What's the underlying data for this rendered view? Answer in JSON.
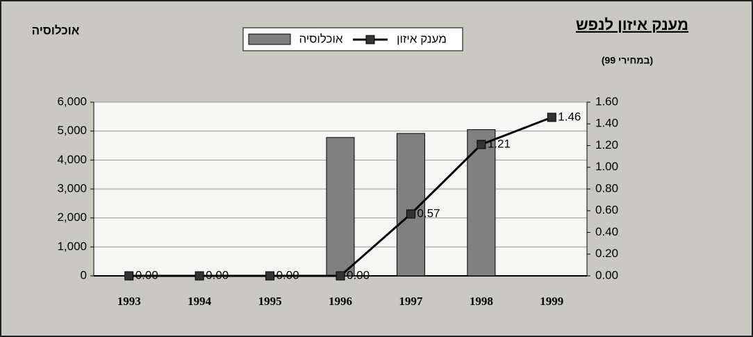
{
  "chart_data": {
    "type": "bar",
    "title": "מענק איזון לנפש",
    "subtitle": "(במחירי 99)",
    "y_label": "אוכלוסיה",
    "categories": [
      "1993",
      "1994",
      "1995",
      "1996",
      "1997",
      "1998",
      "1999"
    ],
    "series": [
      {
        "name": "אוכלוסיה",
        "type": "bar",
        "color": "#808080",
        "values": [
          0,
          0,
          0,
          4780,
          4920,
          5050,
          null
        ]
      },
      {
        "name": "מענק איזון",
        "type": "line",
        "axis": "y2",
        "color": "#000000",
        "values": [
          0,
          0,
          0,
          0,
          0.57,
          1.21,
          1.46
        ],
        "value_labels": [
          "0.00",
          "0.00",
          "0.00",
          "0.00",
          "0.57",
          "1.21",
          "1.46"
        ]
      }
    ],
    "ylim": [
      0,
      6000
    ],
    "yticks": [
      0,
      {
        "value": 1000,
        "label": "1,000"
      },
      {
        "value": 2000,
        "label": "2,000"
      },
      {
        "value": 3000,
        "label": "3,000"
      },
      {
        "value": 4000,
        "label": "4,000"
      },
      {
        "value": 5000,
        "label": "5,000"
      },
      {
        "value": 6000,
        "label": "6,000"
      }
    ],
    "y2lim": [
      0,
      1.6
    ],
    "y2ticks": [
      {
        "value": 0,
        "label": "0.00"
      },
      {
        "value": 0.2,
        "label": "0.20"
      },
      {
        "value": 0.4,
        "label": "0.40"
      },
      {
        "value": 0.6,
        "label": "0.60"
      },
      {
        "value": 0.8,
        "label": "0.80"
      },
      {
        "value": 1,
        "label": "1.00"
      },
      {
        "value": 1.2,
        "label": "1.20"
      },
      {
        "value": 1.4,
        "label": "1.40"
      },
      {
        "value": 1.6,
        "label": "1.60"
      }
    ],
    "grid": true,
    "legend": "top"
  }
}
